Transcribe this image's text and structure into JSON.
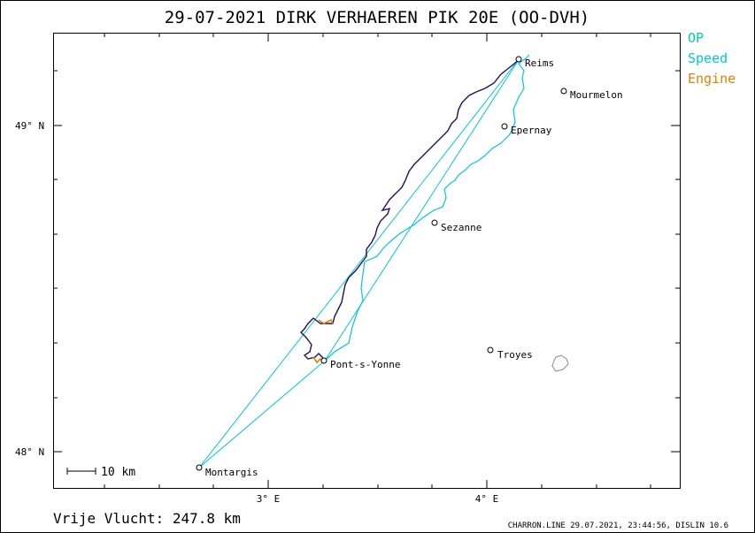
{
  "header": {
    "title": "29-07-2021   DIRK VERHAEREN   PIK 20E (OO-DVH)"
  },
  "legend": {
    "op": "OP",
    "speed": "Speed",
    "engine": "Engine"
  },
  "colors": {
    "op": "#00d0a0",
    "speed": "#00c8d8",
    "engine": "#e08000",
    "track": "#20105a"
  },
  "axes": {
    "lat_labels": [
      "49° N",
      "48° N"
    ],
    "lon_labels": [
      "3° E",
      "4° E"
    ]
  },
  "places": [
    {
      "name": "Reims"
    },
    {
      "name": "Mourmelon"
    },
    {
      "name": "Epernay"
    },
    {
      "name": "Sezanne"
    },
    {
      "name": "Troyes"
    },
    {
      "name": "Pont-s-Yonne"
    },
    {
      "name": "Montargis"
    }
  ],
  "scale_bar": {
    "label": "10 km"
  },
  "footer": {
    "distance": "Vrije Vlucht:  247.8 km",
    "credit": "CHARRON.LINE 29.07.2021, 23:44:56, DISLIN 10.6"
  }
}
